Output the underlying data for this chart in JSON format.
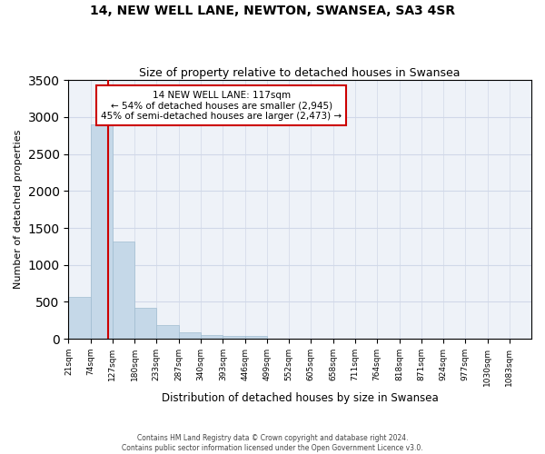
{
  "title": "14, NEW WELL LANE, NEWTON, SWANSEA, SA3 4SR",
  "subtitle": "Size of property relative to detached houses in Swansea",
  "xlabel": "Distribution of detached houses by size in Swansea",
  "ylabel": "Number of detached properties",
  "footer_line1": "Contains HM Land Registry data © Crown copyright and database right 2024.",
  "footer_line2": "Contains public sector information licensed under the Open Government Licence v3.0.",
  "bin_labels": [
    "21sqm",
    "74sqm",
    "127sqm",
    "180sqm",
    "233sqm",
    "287sqm",
    "340sqm",
    "393sqm",
    "446sqm",
    "499sqm",
    "552sqm",
    "605sqm",
    "658sqm",
    "711sqm",
    "764sqm",
    "818sqm",
    "871sqm",
    "924sqm",
    "977sqm",
    "1030sqm",
    "1083sqm"
  ],
  "bin_edges": [
    21,
    74,
    127,
    180,
    233,
    287,
    340,
    393,
    446,
    499,
    552,
    605,
    658,
    711,
    764,
    818,
    871,
    924,
    977,
    1030,
    1083
  ],
  "bar_heights": [
    570,
    2900,
    1320,
    420,
    185,
    85,
    50,
    40,
    40,
    0,
    0,
    0,
    0,
    0,
    0,
    0,
    0,
    0,
    0,
    0
  ],
  "bar_color": "#c5d8e8",
  "bar_edge_color": "#a0bcd0",
  "grid_color": "#d0d8e8",
  "background_color": "#eef2f8",
  "property_size": 117,
  "vline_color": "#cc0000",
  "annotation_line1": "14 NEW WELL LANE: 117sqm",
  "annotation_line2": "← 54% of detached houses are smaller (2,945)",
  "annotation_line3": "45% of semi-detached houses are larger (2,473) →",
  "annotation_box_edgecolor": "#cc0000",
  "ylim": [
    0,
    3500
  ],
  "yticks": [
    0,
    500,
    1000,
    1500,
    2000,
    2500,
    3000,
    3500
  ]
}
